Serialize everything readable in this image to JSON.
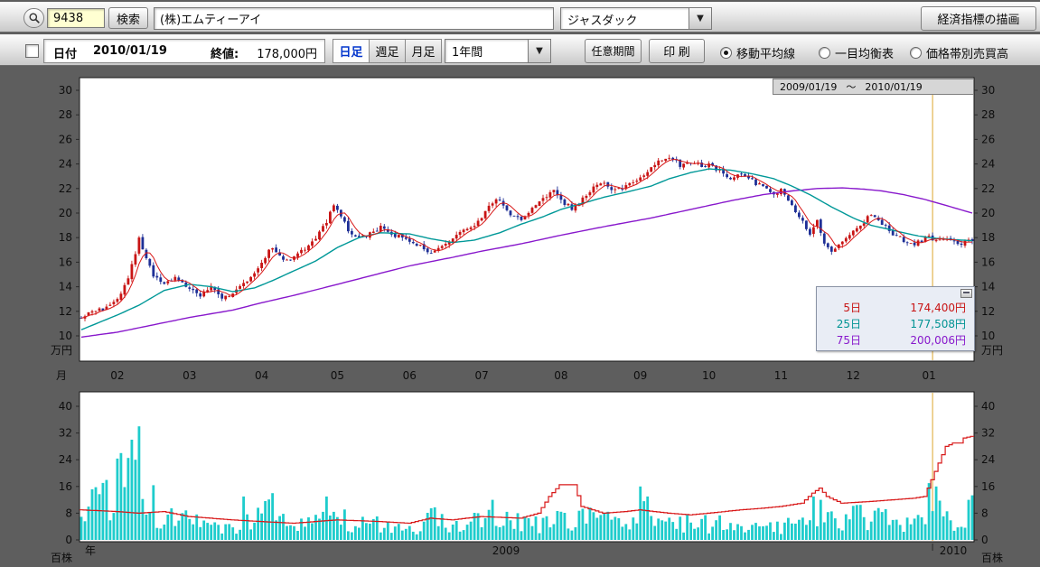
{
  "toolbar": {
    "stock_code": "9438",
    "search_button": "検索",
    "company_name": "(株)エムティーアイ",
    "market_selected": "ジャスダック",
    "econ_button": "経済指標の描画"
  },
  "toolbar2": {
    "date_label": "日付",
    "date_value": "2010/01/19",
    "close_label": "終値:",
    "close_value": "178,000円",
    "tabs": [
      {
        "label": "日足",
        "selected": true
      },
      {
        "label": "週足",
        "selected": false
      },
      {
        "label": "月足",
        "selected": false
      }
    ],
    "period_selected": "1年間",
    "custom_period_button": "任意期間",
    "print_button": "印 刷",
    "radios": [
      {
        "label": "移動平均線",
        "selected": true
      },
      {
        "label": "一目均衡表",
        "selected": false
      },
      {
        "label": "価格帯別売買高",
        "selected": false
      }
    ]
  },
  "price_chart": {
    "range_start": "2009/01/19",
    "range_separator": "～",
    "range_end": "2010/01/19",
    "unit": "万円",
    "y_ticks": [
      30,
      28,
      26,
      24,
      22,
      20,
      18,
      16,
      14,
      12,
      10
    ],
    "legend": {
      "rows": [
        {
          "label": "5日",
          "value": "174,400円",
          "color": "#c81414"
        },
        {
          "label": "25日",
          "value": "177,508円",
          "color": "#009393"
        },
        {
          "label": "75日",
          "value": "200,006円",
          "color": "#8818cc"
        }
      ]
    }
  },
  "volume_chart": {
    "unit": "百株",
    "y_ticks": [
      40,
      32,
      24,
      16,
      8,
      0
    ]
  },
  "month_axis": {
    "title": "月"
  },
  "year_axis": {
    "title": "年",
    "years": [
      "2009",
      "2010"
    ]
  },
  "chart_data": {
    "type": "candlestick",
    "symbol": "9438",
    "company": "(株)エムティーアイ",
    "period": "2009/01/19 ～ 2010/01/19",
    "days": 248,
    "seed": 20100119,
    "marker_day": 236,
    "year_boundary_day": 236,
    "price_axis": {
      "min": 10,
      "max": 30,
      "unit": "万円"
    },
    "volume_axis": {
      "min": 0,
      "max": 40,
      "unit": "百株"
    },
    "colors": {
      "candle_up": "#c81414",
      "candle_down": "#1e2f96",
      "ma5": "#d81818",
      "ma25": "#009898",
      "ma75": "#8818cc",
      "volume_bar": "#1ecccc",
      "volume_line": "#d81818",
      "marker": "#dca52d"
    },
    "month_labels": [
      {
        "label": "02",
        "day": 10
      },
      {
        "label": "03",
        "day": 30
      },
      {
        "label": "04",
        "day": 50
      },
      {
        "label": "05",
        "day": 71
      },
      {
        "label": "06",
        "day": 91
      },
      {
        "label": "07",
        "day": 111
      },
      {
        "label": "08",
        "day": 133
      },
      {
        "label": "09",
        "day": 155
      },
      {
        "label": "10",
        "day": 174
      },
      {
        "label": "11",
        "day": 194
      },
      {
        "label": "12",
        "day": 214
      },
      {
        "label": "01",
        "day": 235
      }
    ],
    "price": {
      "last_close": 17.8,
      "ma_values": {
        "ma5": 17.44,
        "ma25": 17.7508,
        "ma75": 20.0006
      },
      "close_anchors": [
        [
          0,
          11.6
        ],
        [
          3,
          11.9
        ],
        [
          6,
          12.2
        ],
        [
          10,
          12.9
        ],
        [
          13,
          14.8
        ],
        [
          15,
          16.8
        ],
        [
          16,
          18.1
        ],
        [
          18,
          16.2
        ],
        [
          20,
          14.9
        ],
        [
          23,
          14.3
        ],
        [
          26,
          14.7
        ],
        [
          30,
          13.9
        ],
        [
          33,
          13.2
        ],
        [
          36,
          14.1
        ],
        [
          39,
          13.0
        ],
        [
          42,
          13.4
        ],
        [
          45,
          14.3
        ],
        [
          48,
          15.2
        ],
        [
          50,
          16.1
        ],
        [
          53,
          17.3
        ],
        [
          56,
          16.1
        ],
        [
          59,
          16.4
        ],
        [
          62,
          17.1
        ],
        [
          65,
          18.0
        ],
        [
          68,
          19.3
        ],
        [
          70,
          20.7
        ],
        [
          71,
          20.3
        ],
        [
          74,
          18.6
        ],
        [
          77,
          17.9
        ],
        [
          80,
          18.4
        ],
        [
          83,
          18.8
        ],
        [
          86,
          18.3
        ],
        [
          89,
          18.0
        ],
        [
          91,
          17.8
        ],
        [
          94,
          17.3
        ],
        [
          97,
          16.6
        ],
        [
          100,
          17.3
        ],
        [
          103,
          17.9
        ],
        [
          106,
          18.5
        ],
        [
          109,
          19.1
        ],
        [
          111,
          19.7
        ],
        [
          114,
          20.9
        ],
        [
          116,
          21.2
        ],
        [
          119,
          19.9
        ],
        [
          122,
          19.4
        ],
        [
          125,
          20.3
        ],
        [
          128,
          21.2
        ],
        [
          131,
          21.9
        ],
        [
          133,
          21.0
        ],
        [
          136,
          20.4
        ],
        [
          139,
          21.1
        ],
        [
          142,
          22.0
        ],
        [
          145,
          22.4
        ],
        [
          148,
          21.8
        ],
        [
          151,
          22.2
        ],
        [
          154,
          22.7
        ],
        [
          155,
          22.9
        ],
        [
          158,
          23.6
        ],
        [
          161,
          24.4
        ],
        [
          163,
          24.6
        ],
        [
          166,
          23.9
        ],
        [
          169,
          24.2
        ],
        [
          172,
          23.8
        ],
        [
          174,
          23.9
        ],
        [
          177,
          23.4
        ],
        [
          180,
          22.9
        ],
        [
          183,
          23.2
        ],
        [
          186,
          22.6
        ],
        [
          189,
          22.1
        ],
        [
          192,
          21.5
        ],
        [
          194,
          21.9
        ],
        [
          197,
          20.7
        ],
        [
          200,
          19.3
        ],
        [
          202,
          18.1
        ],
        [
          204,
          19.4
        ],
        [
          206,
          17.6
        ],
        [
          208,
          16.9
        ],
        [
          211,
          17.7
        ],
        [
          214,
          18.5
        ],
        [
          217,
          19.3
        ],
        [
          219,
          19.9
        ],
        [
          222,
          19.2
        ],
        [
          225,
          18.3
        ],
        [
          228,
          17.8
        ],
        [
          231,
          17.5
        ],
        [
          232,
          17.7
        ],
        [
          235,
          18.0
        ],
        [
          238,
          17.7
        ],
        [
          241,
          17.9
        ],
        [
          244,
          17.5
        ],
        [
          247,
          17.8
        ]
      ],
      "ma25_anchors": [
        [
          0,
          10.5
        ],
        [
          10,
          11.7
        ],
        [
          16,
          12.5
        ],
        [
          23,
          13.7
        ],
        [
          30,
          14.2
        ],
        [
          36,
          14.0
        ],
        [
          42,
          13.6
        ],
        [
          48,
          13.9
        ],
        [
          53,
          14.5
        ],
        [
          59,
          15.3
        ],
        [
          65,
          16.1
        ],
        [
          71,
          17.2
        ],
        [
          77,
          18.0
        ],
        [
          83,
          18.4
        ],
        [
          91,
          18.3
        ],
        [
          97,
          17.9
        ],
        [
          103,
          17.6
        ],
        [
          109,
          17.8
        ],
        [
          116,
          18.4
        ],
        [
          122,
          19.1
        ],
        [
          128,
          19.7
        ],
        [
          133,
          20.3
        ],
        [
          139,
          20.8
        ],
        [
          145,
          21.3
        ],
        [
          151,
          21.7
        ],
        [
          158,
          22.2
        ],
        [
          163,
          22.8
        ],
        [
          169,
          23.3
        ],
        [
          174,
          23.6
        ],
        [
          180,
          23.5
        ],
        [
          186,
          23.2
        ],
        [
          192,
          22.8
        ],
        [
          197,
          22.2
        ],
        [
          202,
          21.5
        ],
        [
          208,
          20.5
        ],
        [
          214,
          19.6
        ],
        [
          219,
          19.0
        ],
        [
          225,
          18.6
        ],
        [
          231,
          18.2
        ],
        [
          235,
          18.0
        ],
        [
          241,
          17.85
        ],
        [
          247,
          17.75
        ]
      ],
      "ma75_anchors": [
        [
          0,
          9.9
        ],
        [
          10,
          10.3
        ],
        [
          20,
          10.9
        ],
        [
          30,
          11.5
        ],
        [
          42,
          12.1
        ],
        [
          50,
          12.7
        ],
        [
          59,
          13.3
        ],
        [
          71,
          14.2
        ],
        [
          83,
          15.1
        ],
        [
          91,
          15.7
        ],
        [
          103,
          16.4
        ],
        [
          111,
          16.9
        ],
        [
          122,
          17.5
        ],
        [
          133,
          18.2
        ],
        [
          145,
          18.9
        ],
        [
          158,
          19.6
        ],
        [
          169,
          20.3
        ],
        [
          180,
          21.0
        ],
        [
          189,
          21.5
        ],
        [
          197,
          21.8
        ],
        [
          204,
          22.0
        ],
        [
          211,
          22.05
        ],
        [
          217,
          21.95
        ],
        [
          222,
          21.8
        ],
        [
          228,
          21.5
        ],
        [
          234,
          21.1
        ],
        [
          240,
          20.6
        ],
        [
          247,
          20.0
        ]
      ]
    },
    "volume": {
      "anchors": [
        [
          0,
          8
        ],
        [
          5,
          12
        ],
        [
          10,
          15
        ],
        [
          13,
          20
        ],
        [
          16,
          22
        ],
        [
          19,
          11
        ],
        [
          23,
          7
        ],
        [
          30,
          5
        ],
        [
          36,
          4
        ],
        [
          42,
          4
        ],
        [
          48,
          6
        ],
        [
          53,
          8
        ],
        [
          57,
          5
        ],
        [
          62,
          5
        ],
        [
          68,
          8
        ],
        [
          71,
          7
        ],
        [
          77,
          5
        ],
        [
          83,
          4.5
        ],
        [
          91,
          4
        ],
        [
          97,
          6
        ],
        [
          103,
          4.5
        ],
        [
          109,
          5.5
        ],
        [
          111,
          6.5
        ],
        [
          116,
          6
        ],
        [
          122,
          4.5
        ],
        [
          128,
          5.5
        ],
        [
          133,
          5
        ],
        [
          139,
          6.5
        ],
        [
          145,
          5.5
        ],
        [
          151,
          6
        ],
        [
          155,
          8
        ],
        [
          161,
          6.5
        ],
        [
          166,
          5
        ],
        [
          172,
          4.5
        ],
        [
          174,
          5
        ],
        [
          180,
          4
        ],
        [
          186,
          4
        ],
        [
          192,
          3.5
        ],
        [
          197,
          5
        ],
        [
          202,
          8
        ],
        [
          208,
          7
        ],
        [
          214,
          6
        ],
        [
          219,
          7.5
        ],
        [
          225,
          5
        ],
        [
          231,
          4.5
        ],
        [
          235,
          9
        ],
        [
          238,
          12
        ],
        [
          241,
          8
        ],
        [
          244,
          7
        ],
        [
          247,
          11
        ]
      ],
      "spikes": {
        "11": 26,
        "14": 30,
        "15": 24,
        "16": 34,
        "45": 13,
        "53": 14,
        "68": 13,
        "97": 9.5,
        "114": 12,
        "155": 16,
        "157": 13,
        "203": 13,
        "205": 12,
        "235": 17,
        "237": 16,
        "246": 12
      },
      "line_anchors": [
        [
          0,
          9
        ],
        [
          10,
          8.5
        ],
        [
          16,
          8
        ],
        [
          23,
          8.5
        ],
        [
          30,
          7
        ],
        [
          42,
          6
        ],
        [
          50,
          5.5
        ],
        [
          59,
          5
        ],
        [
          71,
          6
        ],
        [
          83,
          5.5
        ],
        [
          91,
          5
        ],
        [
          97,
          6.5
        ],
        [
          103,
          6
        ],
        [
          111,
          7
        ],
        [
          122,
          6.5
        ],
        [
          127,
          8
        ],
        [
          130,
          13
        ],
        [
          133,
          16.5
        ],
        [
          137,
          16.5
        ],
        [
          139,
          10
        ],
        [
          145,
          8
        ],
        [
          151,
          8.5
        ],
        [
          155,
          9
        ],
        [
          163,
          8
        ],
        [
          169,
          7.5
        ],
        [
          174,
          8
        ],
        [
          183,
          9
        ],
        [
          189,
          9.5
        ],
        [
          194,
          10
        ],
        [
          200,
          11
        ],
        [
          203,
          14
        ],
        [
          205,
          15.5
        ],
        [
          207,
          13
        ],
        [
          211,
          11
        ],
        [
          219,
          11.5
        ],
        [
          225,
          12
        ],
        [
          231,
          12.5
        ],
        [
          234,
          13
        ],
        [
          236,
          18
        ],
        [
          238,
          23
        ],
        [
          240,
          28
        ],
        [
          242,
          29
        ],
        [
          244,
          29
        ],
        [
          245,
          30.5
        ],
        [
          247,
          31
        ]
      ]
    }
  }
}
